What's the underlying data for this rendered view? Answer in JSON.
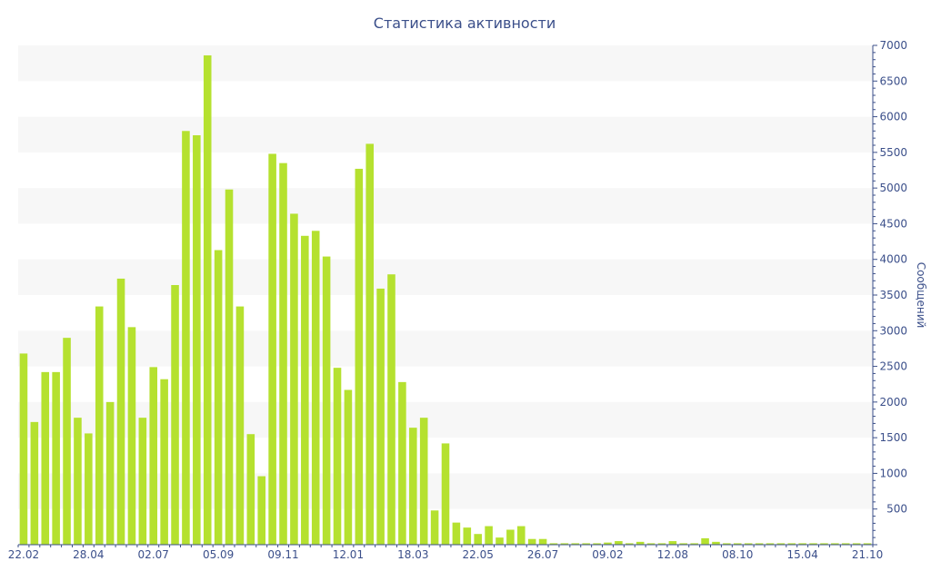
{
  "chart_data": {
    "type": "bar",
    "title": "Статистика активности",
    "ylabel": "Сообщений",
    "xlabel": "",
    "ylim": [
      0,
      7000
    ],
    "y_ticks": [
      500,
      1000,
      1500,
      2000,
      2500,
      3000,
      3500,
      4000,
      4500,
      5000,
      5500,
      6000,
      6500,
      7000
    ],
    "y_tick_labels": [
      "500",
      "1000",
      "1500",
      "2000",
      "2500",
      "3000",
      "3500",
      "4000",
      "4500",
      "5000",
      "5500",
      "6000",
      "6500",
      "7000"
    ],
    "y_axis_side": "right",
    "grid": "alternating horizontal bands",
    "colors": {
      "bar": "#b5e12f",
      "band": "#f7f7f7",
      "axis": "#3b4f8a"
    },
    "x_tick_labels": [
      {
        "label": "22.02",
        "index": 0
      },
      {
        "label": "28.04",
        "index": 6
      },
      {
        "label": "02.07",
        "index": 12
      },
      {
        "label": "05.09",
        "index": 18
      },
      {
        "label": "09.11",
        "index": 24
      },
      {
        "label": "12.01",
        "index": 30
      },
      {
        "label": "18.03",
        "index": 36
      },
      {
        "label": "22.05",
        "index": 42
      },
      {
        "label": "26.07",
        "index": 48
      },
      {
        "label": "09.02",
        "index": 54
      },
      {
        "label": "12.08",
        "index": 60
      },
      {
        "label": "08.10",
        "index": 66
      },
      {
        "label": "15.04",
        "index": 72
      },
      {
        "label": "21.10",
        "index": 78
      }
    ],
    "values": [
      2680,
      1720,
      2420,
      2420,
      2900,
      1780,
      1560,
      3340,
      2000,
      3730,
      3050,
      1780,
      2490,
      2320,
      3640,
      5800,
      5740,
      6860,
      4130,
      4980,
      3340,
      1550,
      960,
      5480,
      5350,
      4640,
      4330,
      4400,
      4040,
      2480,
      2170,
      5270,
      5620,
      3590,
      3790,
      2280,
      1640,
      1780,
      480,
      1420,
      310,
      240,
      150,
      260,
      100,
      210,
      260,
      80,
      80,
      20,
      20,
      20,
      20,
      20,
      30,
      50,
      20,
      40,
      20,
      20,
      50,
      20,
      20,
      90,
      40,
      20,
      20,
      20,
      20,
      20,
      20,
      20,
      20,
      20,
      20,
      20,
      20,
      20,
      20
    ]
  }
}
